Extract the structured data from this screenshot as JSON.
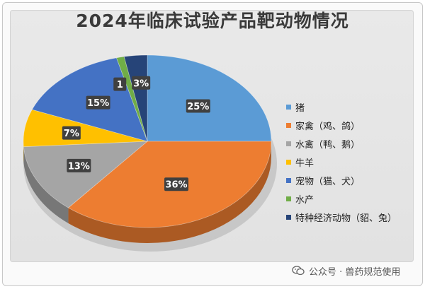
{
  "chart_data": {
    "type": "pie",
    "title": "2024年临床试验产品靶动物情况",
    "legend_position": "right",
    "slices": [
      {
        "label": "猪",
        "value": 25,
        "data_label": "25%",
        "color": "#5b9bd5"
      },
      {
        "label": "家禽（鸡、鸽）",
        "value": 36,
        "data_label": "36%",
        "color": "#ed7d31"
      },
      {
        "label": "水禽（鸭、鹅）",
        "value": 13,
        "data_label": "13%",
        "color": "#a5a5a5"
      },
      {
        "label": "牛羊",
        "value": 7,
        "data_label": "7%",
        "color": "#ffc000"
      },
      {
        "label": "宠物（猫、犬）",
        "value": 15,
        "data_label": "15%",
        "color": "#4472c4"
      },
      {
        "label": "水产",
        "value": 1,
        "data_label": "1",
        "color": "#70ad47"
      },
      {
        "label": "特种经济动物（貂、兔）",
        "value": 3,
        "data_label": "3%",
        "color": "#264478"
      }
    ]
  },
  "footer": {
    "text": "公众号 · 兽药规范使用",
    "icon": "wechat-icon"
  }
}
